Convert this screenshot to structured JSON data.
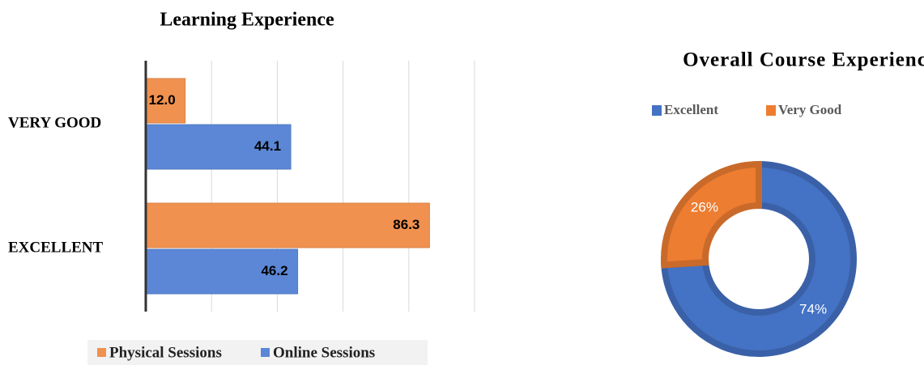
{
  "chart_data": [
    {
      "type": "bar",
      "orientation": "horizontal",
      "title": "Learning Experience",
      "categories": [
        "VERY GOOD",
        "EXCELLENT"
      ],
      "series": [
        {
          "name": "Physical Sessions",
          "color": "#f0914f",
          "values": [
            12.0,
            86.3
          ],
          "value_labels": [
            "12.0",
            "86.3"
          ]
        },
        {
          "name": "Online Sessions",
          "color": "#5b87d6",
          "values": [
            44.1,
            46.2
          ]
        }
      ],
      "xlim": [
        0,
        100
      ],
      "xticks": [
        0,
        20,
        40,
        60,
        80,
        100
      ],
      "grid": true,
      "legend": "bottom"
    },
    {
      "type": "donut",
      "title": "Overall Course Experience",
      "categories": [
        "Excellent",
        "Very Good"
      ],
      "values": [
        74,
        26
      ],
      "value_labels": [
        "74%",
        "26%"
      ],
      "colors": [
        "#4472c4",
        "#ed7d31"
      ],
      "legend": "top"
    }
  ]
}
